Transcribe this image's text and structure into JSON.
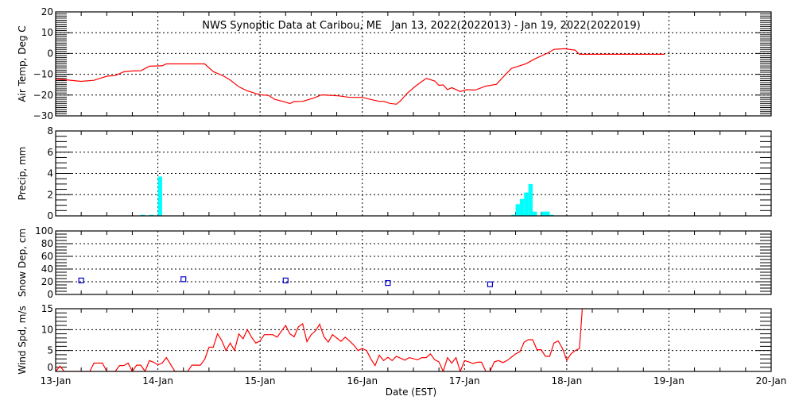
{
  "title": "NWS Synoptic Data at Caribou, ME   Jan 13, 2022(2022013) - Jan 19, 2022(2022019)",
  "x_axis": {
    "label": "Date (EST)",
    "ticks": [
      "13-Jan",
      "14-Jan",
      "15-Jan",
      "16-Jan",
      "17-Jan",
      "18-Jan",
      "19-Jan",
      "20-Jan"
    ],
    "range_days": [
      0,
      7
    ],
    "x_unit": "hours since 13-Jan 00:00 EST"
  },
  "chart_data": [
    {
      "type": "line",
      "ylabel": "Air Temp, Deg C",
      "ylim": [
        -30,
        20
      ],
      "yticks": [
        20,
        10,
        0,
        -10,
        -20,
        -30
      ],
      "grid": true,
      "color": "#ff0000",
      "x": [
        0,
        3,
        6,
        9,
        12,
        14,
        16,
        18,
        20,
        21,
        22,
        25,
        26,
        35,
        37,
        39.5,
        41,
        43,
        45,
        48,
        50,
        51.5,
        53.5,
        55,
        56,
        58,
        60.5,
        62.5,
        64.5,
        66.5,
        69,
        72,
        74,
        76,
        77,
        78.5,
        80,
        81,
        82.5,
        84.5,
        87,
        89,
        90,
        91,
        92,
        93,
        95,
        96.5,
        98.5,
        101,
        103.5,
        105,
        107,
        110.5,
        112.5,
        115.5,
        117,
        119.5,
        122,
        123,
        143
      ],
      "y": [
        -12.3,
        -12.8,
        -13.4,
        -12.9,
        -10.9,
        -10.6,
        -8.8,
        -8.4,
        -8.3,
        -7.2,
        -6.1,
        -5.9,
        -5.0,
        -5.0,
        -8.7,
        -10.9,
        -12.8,
        -16.0,
        -18.0,
        -19.8,
        -20.2,
        -22.1,
        -23.1,
        -24.1,
        -23.1,
        -23.0,
        -21.5,
        -19.9,
        -20.1,
        -20.4,
        -21.1,
        -21.1,
        -22.1,
        -23.0,
        -23.0,
        -24.0,
        -24.4,
        -22.7,
        -19.2,
        -15.7,
        -12.0,
        -13.2,
        -15.3,
        -15.1,
        -17.4,
        -16.4,
        -18.3,
        -17.4,
        -17.6,
        -15.7,
        -14.8,
        -11.5,
        -7.2,
        -4.9,
        -2.6,
        0.2,
        2.0,
        2.3,
        1.6,
        -0.4,
        -0.4
      ]
    },
    {
      "type": "bar",
      "ylabel": "Precip, mm",
      "ylim": [
        0,
        8
      ],
      "yticks": [
        8,
        6,
        4,
        2,
        0
      ],
      "grid": true,
      "color": "#00ffff",
      "x": [
        20,
        22,
        24,
        107,
        108,
        109,
        110,
        111,
        112,
        114,
        115,
        116
      ],
      "values": [
        0.1,
        0.1,
        3.7,
        0.1,
        1.1,
        1.6,
        2.2,
        3.0,
        0.4,
        0.4,
        0.4,
        0.1
      ]
    },
    {
      "type": "scatter",
      "ylabel": "Snow Dep, cm",
      "ylim": [
        0,
        100
      ],
      "yticks": [
        100,
        80,
        60,
        40,
        20,
        0
      ],
      "grid": true,
      "color": "#0000cc",
      "x": [
        6,
        30,
        54,
        78,
        102
      ],
      "y": [
        22,
        24,
        22,
        18,
        16
      ]
    },
    {
      "type": "line",
      "ylabel": "Wind Spd, m/s",
      "ylim": [
        0,
        15
      ],
      "yticks": [
        15,
        10,
        5,
        0
      ],
      "grid": true,
      "color": "#ff0000",
      "x": [
        0,
        1,
        2,
        8,
        9,
        11,
        12,
        14,
        15,
        16,
        17,
        18,
        19,
        20,
        21,
        22,
        23,
        24,
        25,
        26,
        28,
        31,
        32,
        34,
        35,
        36,
        37,
        38,
        39,
        40,
        41,
        42,
        43,
        44,
        45,
        46,
        47,
        48,
        49,
        51,
        52,
        53,
        54,
        55,
        56,
        57,
        58,
        59,
        60,
        61,
        62,
        63,
        64,
        65,
        66,
        67,
        68,
        69,
        70,
        71,
        72,
        73,
        74,
        75,
        76,
        77,
        78,
        79,
        80,
        82,
        83,
        85,
        86,
        87,
        88,
        89,
        90,
        91,
        92,
        93,
        94,
        95,
        96,
        97,
        98,
        99,
        100,
        101,
        102,
        103,
        104,
        105,
        106,
        107,
        108,
        109,
        110,
        111,
        112,
        113,
        114,
        115,
        116,
        117,
        118,
        119,
        120,
        121,
        122,
        123,
        124
      ],
      "y": [
        0,
        1.3,
        0,
        0,
        2,
        2,
        0,
        0,
        1.4,
        1.4,
        2,
        0,
        1.5,
        1.5,
        0,
        2.6,
        2.2,
        1.6,
        2,
        3.3,
        0,
        0,
        1.5,
        1.5,
        2.9,
        5.8,
        5.8,
        9,
        7.4,
        5,
        6.8,
        5,
        9,
        7.8,
        10,
        8.2,
        6.8,
        7.3,
        8.8,
        8.8,
        8.2,
        9.6,
        11,
        9,
        8.3,
        10.7,
        11.4,
        7.1,
        8.8,
        9.7,
        11.3,
        8.3,
        7,
        8.8,
        8,
        7.2,
        8.2,
        7.3,
        6.3,
        5,
        5.5,
        5,
        3,
        1.4,
        3.9,
        2.6,
        3.4,
        2.6,
        3.6,
        2.7,
        3.3,
        2.8,
        3.3,
        3.3,
        4.2,
        2.8,
        2.3,
        0,
        3.3,
        2,
        3.3,
        0,
        2.6,
        2.3,
        1.9,
        2.2,
        2.2,
        0,
        0,
        2.3,
        2.6,
        2.1,
        2.6,
        3.4,
        4.2,
        4.7,
        7,
        7.6,
        7.6,
        5.2,
        5.2,
        3.6,
        3.6,
        6.8,
        7.3,
        5.5,
        2.7,
        4.2,
        5,
        5.5,
        20
      ]
    }
  ]
}
